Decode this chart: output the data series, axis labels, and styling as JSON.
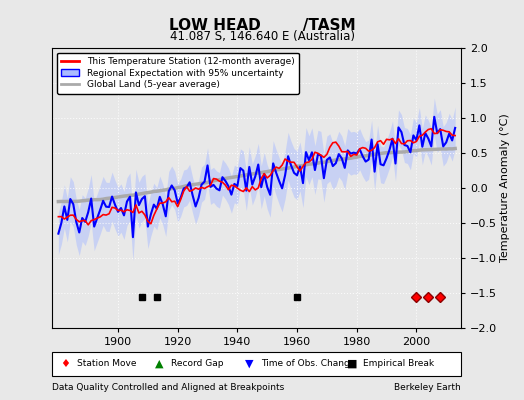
{
  "title": "LOW HEAD        /TASM",
  "subtitle": "41.087 S, 146.640 E (Australia)",
  "ylabel": "Temperature Anomaly (°C)",
  "xlabel_bottom": "Data Quality Controlled and Aligned at Breakpoints",
  "xlabel_right": "Berkeley Earth",
  "year_start": 1880,
  "year_end": 2013,
  "ylim": [
    -2.0,
    2.0
  ],
  "yticks": [
    -2,
    -1.5,
    -1,
    -0.5,
    0,
    0.5,
    1,
    1.5,
    2
  ],
  "xticks": [
    1900,
    1920,
    1940,
    1960,
    1980,
    2000
  ],
  "bg_color": "#e8e8e8",
  "plot_bg_color": "#e8e8e8",
  "station_move_years": [
    2000,
    2004,
    2008
  ],
  "empirical_break_years": [
    1908,
    1913,
    1960
  ],
  "station_move_y": -1.55,
  "empirical_break_y": -1.55
}
